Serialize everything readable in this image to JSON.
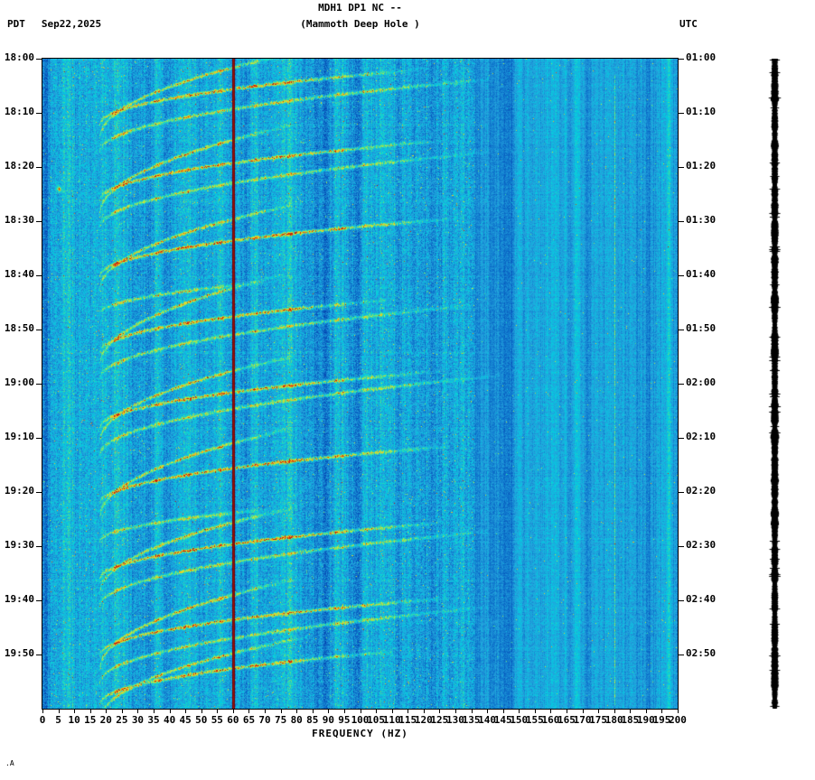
{
  "header": {
    "title": "MDH1 DP1 NC --",
    "subtitle": "(Mammoth Deep Hole )",
    "left_timezone": "PDT",
    "date": "Sep22,2025",
    "right_timezone": "UTC"
  },
  "footer_mark": ".A",
  "axes": {
    "xlabel": "FREQUENCY (HZ)",
    "freq_min": 0,
    "freq_max": 200,
    "freq_tick_step": 5,
    "freq_ticks": [
      0,
      5,
      10,
      15,
      20,
      25,
      30,
      35,
      40,
      45,
      50,
      55,
      60,
      65,
      70,
      75,
      80,
      85,
      90,
      95,
      100,
      105,
      110,
      115,
      120,
      125,
      130,
      135,
      140,
      145,
      150,
      155,
      160,
      165,
      170,
      175,
      180,
      185,
      190,
      195,
      200
    ],
    "left_times": [
      "18:00",
      "18:10",
      "18:20",
      "18:30",
      "18:40",
      "18:50",
      "19:00",
      "19:10",
      "19:20",
      "19:30",
      "19:40",
      "19:50"
    ],
    "right_times": [
      "01:00",
      "01:10",
      "01:20",
      "01:30",
      "01:40",
      "01:50",
      "02:00",
      "02:10",
      "02:20",
      "02:30",
      "02:40",
      "02:50"
    ]
  },
  "chart_data": {
    "type": "heatmap",
    "subtype": "seismic-spectrogram",
    "title": "MDH1 DP1 NC -- (Mammoth Deep Hole )",
    "xlabel": "FREQUENCY (HZ)",
    "x_range_hz": [
      0,
      200
    ],
    "time_axis": {
      "local_label": "PDT",
      "local_start": "18:00",
      "local_end": "20:00",
      "utc_label": "UTC",
      "utc_start": "01:00",
      "utc_end": "03:00",
      "tick_minutes": 10,
      "date": "Sep22,2025"
    },
    "legend": "none",
    "grid": false,
    "colors": {
      "background_blue": "#1ca0dc",
      "speckle_cyan": "#00d0e0",
      "arc_green": "#60e080",
      "arc_yellow": "#d2e834",
      "power_line_dark_red": "#960f0a",
      "trace_black": "#000000"
    },
    "colormap": [
      {
        "v": 0.0,
        "rgb": [
          0,
          40,
          160
        ]
      },
      {
        "v": 0.25,
        "rgb": [
          14,
          118,
          205
        ]
      },
      {
        "v": 0.4,
        "rgb": [
          36,
          162,
          220
        ]
      },
      {
        "v": 0.55,
        "rgb": [
          0,
          208,
          225
        ]
      },
      {
        "v": 0.68,
        "rgb": [
          96,
          224,
          128
        ]
      },
      {
        "v": 0.8,
        "rgb": [
          210,
          232,
          52
        ]
      },
      {
        "v": 0.9,
        "rgb": [
          250,
          176,
          28
        ]
      },
      {
        "v": 1.0,
        "rgb": [
          198,
          30,
          10
        ]
      }
    ],
    "render": {
      "f0_hz": 18,
      "power_line_hz": 60,
      "faint_line_hz": 180,
      "blip": {
        "t_min": 24,
        "f_hz": 5,
        "amp": 0.55
      },
      "broadband_rows_min": [
        12,
        26,
        40,
        54,
        68,
        82,
        96,
        110
      ]
    },
    "events": [
      {
        "t0": 12,
        "c": 1.0,
        "fmax": 118,
        "amp": 0.42
      },
      {
        "t0": 14.5,
        "c": 2.0,
        "fmax": 80,
        "amp": 0.36
      },
      {
        "t0": 17,
        "c": 1.2,
        "fmax": 142,
        "amp": 0.32
      },
      {
        "t0": 26,
        "c": 1.05,
        "fmax": 125,
        "amp": 0.42
      },
      {
        "t0": 28.5,
        "c": 2.1,
        "fmax": 78,
        "amp": 0.36
      },
      {
        "t0": 31,
        "c": 1.25,
        "fmax": 140,
        "amp": 0.3
      },
      {
        "t0": 40,
        "c": 1.0,
        "fmax": 130,
        "amp": 0.44
      },
      {
        "t0": 42.5,
        "c": 2.0,
        "fmax": 82,
        "amp": 0.36
      },
      {
        "t0": 47,
        "c": 0.8,
        "fmax": 70,
        "amp": 0.3
      },
      {
        "t0": 54,
        "c": 1.0,
        "fmax": 108,
        "amp": 0.42
      },
      {
        "t0": 56.5,
        "c": 2.2,
        "fmax": 75,
        "amp": 0.34
      },
      {
        "t0": 59,
        "c": 1.25,
        "fmax": 135,
        "amp": 0.3
      },
      {
        "t0": 68,
        "c": 1.0,
        "fmax": 122,
        "amp": 0.42
      },
      {
        "t0": 70.5,
        "c": 2.0,
        "fmax": 80,
        "amp": 0.36
      },
      {
        "t0": 73,
        "c": 1.3,
        "fmax": 145,
        "amp": 0.3
      },
      {
        "t0": 82,
        "c": 1.0,
        "fmax": 128,
        "amp": 0.44
      },
      {
        "t0": 84.5,
        "c": 2.1,
        "fmax": 78,
        "amp": 0.36
      },
      {
        "t0": 89,
        "c": 0.8,
        "fmax": 72,
        "amp": 0.3
      },
      {
        "t0": 96,
        "c": 1.0,
        "fmax": 126,
        "amp": 0.44
      },
      {
        "t0": 98.5,
        "c": 2.0,
        "fmax": 80,
        "amp": 0.36
      },
      {
        "t0": 101,
        "c": 1.25,
        "fmax": 140,
        "amp": 0.3
      },
      {
        "t0": 110,
        "c": 1.0,
        "fmax": 128,
        "amp": 0.42
      },
      {
        "t0": 112.5,
        "c": 2.1,
        "fmax": 80,
        "amp": 0.36
      },
      {
        "t0": 115,
        "c": 1.25,
        "fmax": 138,
        "amp": 0.3
      },
      {
        "t0": 119,
        "c": 1.0,
        "fmax": 110,
        "amp": 0.4
      },
      {
        "t0": 122,
        "c": 1.9,
        "fmax": 85,
        "amp": 0.34
      }
    ]
  }
}
